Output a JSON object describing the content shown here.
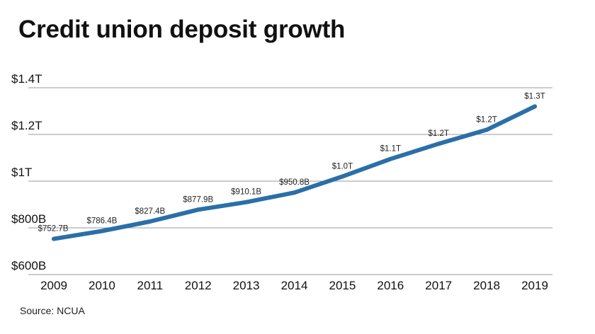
{
  "title": "Credit union deposit growth",
  "source": "Source: NCUA",
  "colors": {
    "line": "#2a6fa8",
    "grid": "#9a9a9a",
    "text": "#111111"
  },
  "chart_data": {
    "type": "line",
    "title": "Credit union deposit growth",
    "xlabel": "",
    "ylabel": "",
    "grid": true,
    "legend": "none",
    "x": [
      "2009",
      "2010",
      "2011",
      "2012",
      "2013",
      "2014",
      "2015",
      "2016",
      "2017",
      "2018",
      "2019"
    ],
    "series": [
      {
        "values": [
          752.7,
          786.4,
          827.4,
          877.9,
          910.1,
          950.8,
          1020,
          1095,
          1160,
          1220,
          1320
        ],
        "labels": [
          "$752.7B",
          "$786.4B",
          "$827.4B",
          "$877.9B",
          "$910.1B",
          "$950.8B",
          "$1.0T",
          "$1.1T",
          "$1.2T",
          "$1.2T",
          "$1.3T"
        ]
      }
    ],
    "ylim": [
      600,
      1400
    ],
    "y_ticks": [
      {
        "value": 600,
        "label": "$600B"
      },
      {
        "value": 800,
        "label": "$800B"
      },
      {
        "value": 1000,
        "label": "$1T"
      },
      {
        "value": 1200,
        "label": "$1.2T"
      },
      {
        "value": 1400,
        "label": "$1.4T"
      }
    ]
  }
}
